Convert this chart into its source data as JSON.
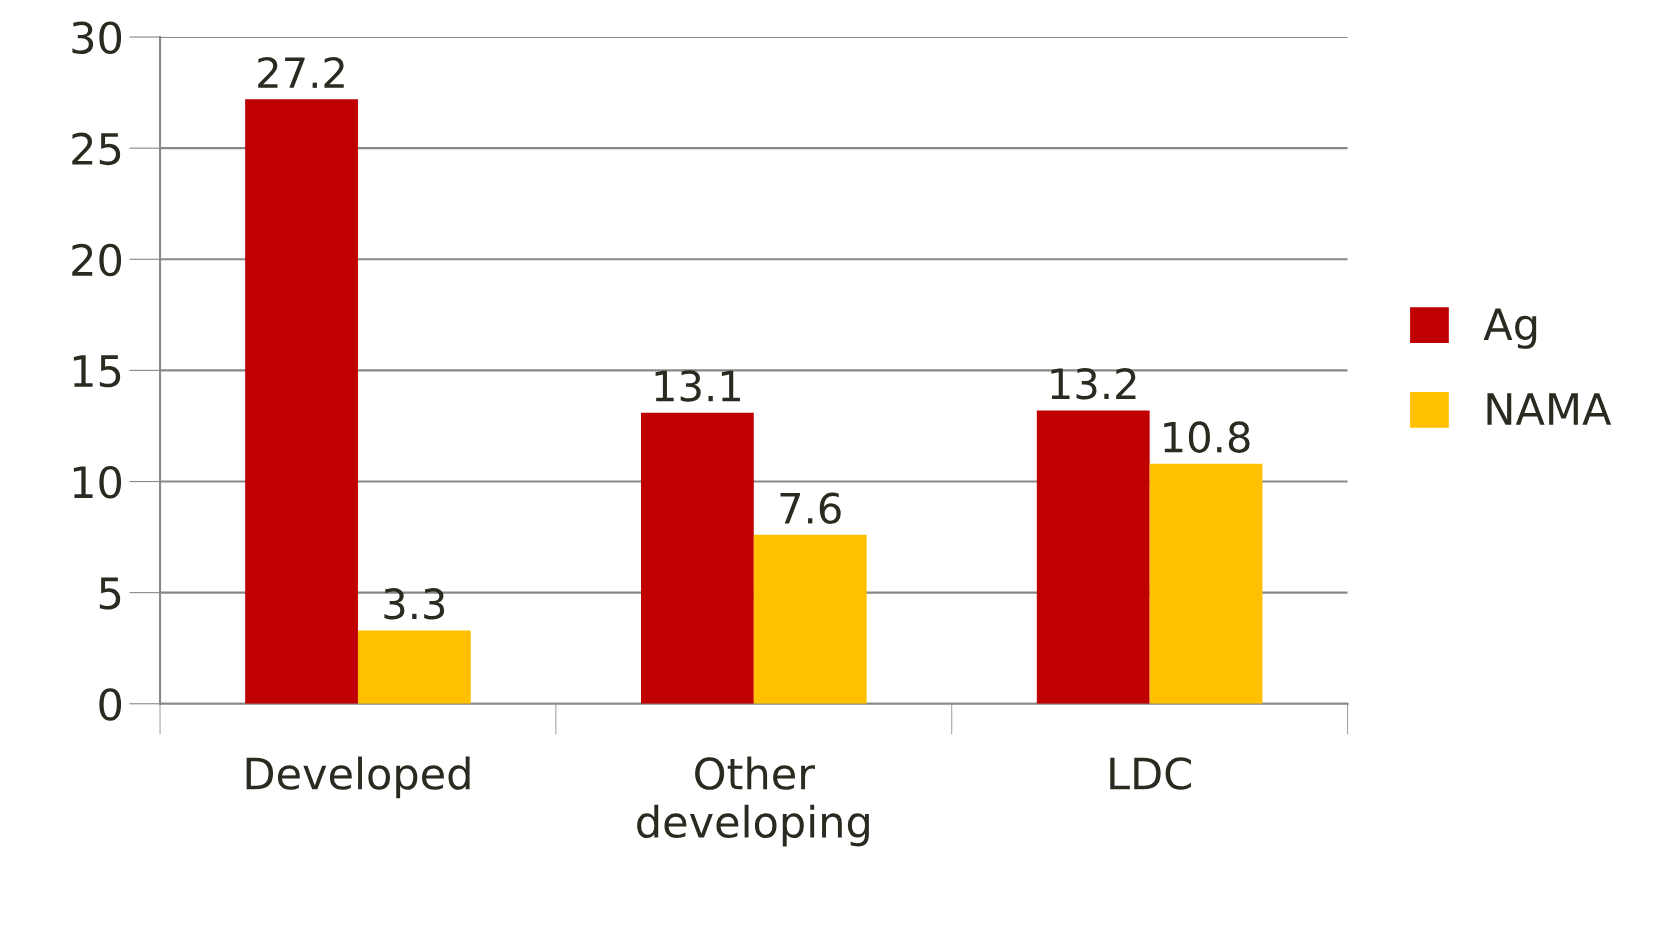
{
  "chart_data": {
    "type": "bar",
    "categories": [
      "Developed",
      "Other\ndeveloping",
      "LDC"
    ],
    "series": [
      {
        "name": "Ag",
        "color": "#c00000",
        "values": [
          27.2,
          13.1,
          13.2
        ]
      },
      {
        "name": "NAMA",
        "color": "#ffc000",
        "values": [
          3.3,
          7.6,
          10.8
        ]
      }
    ],
    "ylim": [
      0,
      30
    ],
    "yticks": [
      0,
      5,
      10,
      15,
      20,
      25,
      30
    ],
    "grid": "y",
    "legend": "right",
    "data_labels": true
  }
}
